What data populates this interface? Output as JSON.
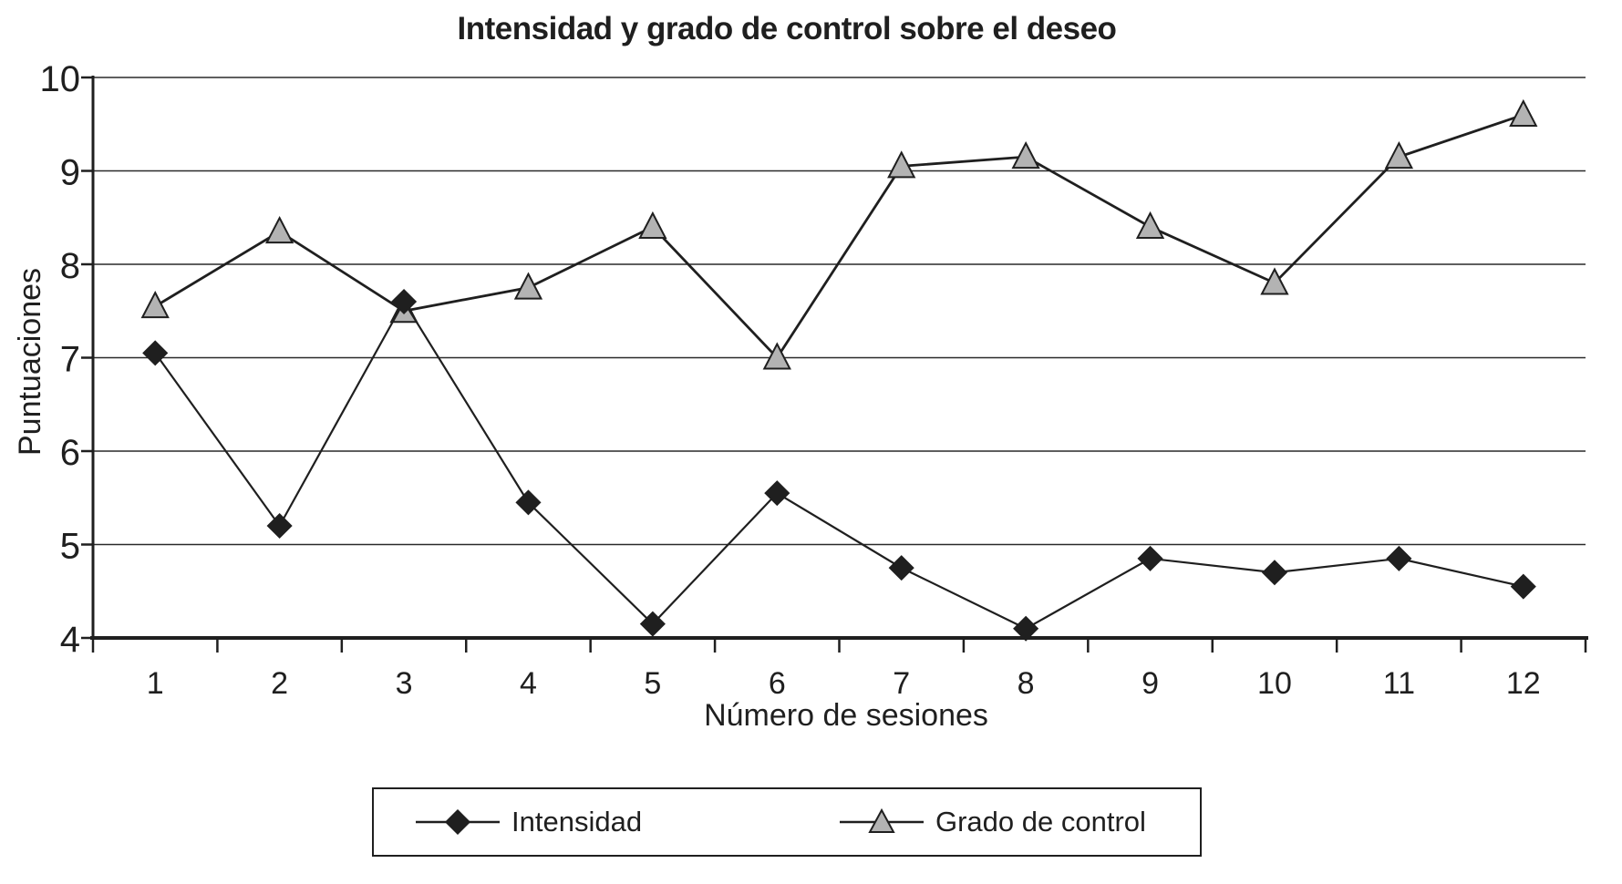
{
  "title": "Intensidad y grado de control sobre el deseo",
  "colors": {
    "ink": "#1f1f1f",
    "gridline": "#2a2a2a",
    "diamond_fill": "#1f1f1f",
    "triangle_fill": "#b3b3b3",
    "background": "#ffffff"
  },
  "legend": {
    "items": [
      {
        "label": "Intensidad",
        "marker": "diamond"
      },
      {
        "label": "Grado de control",
        "marker": "triangle"
      }
    ]
  },
  "chart_data": {
    "type": "line",
    "title": "Intensidad y grado de control sobre el deseo",
    "xlabel": "Número de sesiones",
    "ylabel": "Puntuaciones",
    "categories": [
      "1",
      "2",
      "3",
      "4",
      "5",
      "6",
      "7",
      "8",
      "9",
      "10",
      "11",
      "12"
    ],
    "series": [
      {
        "name": "Intensidad",
        "marker": "diamond",
        "line_color": "#1f1f1f",
        "marker_fill": "#1f1f1f",
        "values": [
          7.05,
          5.2,
          7.6,
          5.45,
          4.15,
          5.55,
          4.75,
          4.1,
          4.85,
          4.7,
          4.85,
          4.55
        ]
      },
      {
        "name": "Grado de control",
        "marker": "triangle",
        "line_color": "#1f1f1f",
        "marker_fill": "#b3b3b3",
        "values": [
          7.55,
          8.35,
          7.5,
          7.75,
          8.4,
          7.0,
          9.05,
          9.15,
          8.4,
          7.8,
          9.15,
          9.6
        ]
      }
    ],
    "ylim": [
      4,
      10
    ],
    "y_ticks": [
      "10",
      "9",
      "8",
      "7",
      "6",
      "5",
      "4"
    ],
    "y_tick_values": [
      10,
      9,
      8,
      7,
      6,
      5,
      4
    ],
    "grid": "horizontal",
    "legend_position": "bottom"
  }
}
